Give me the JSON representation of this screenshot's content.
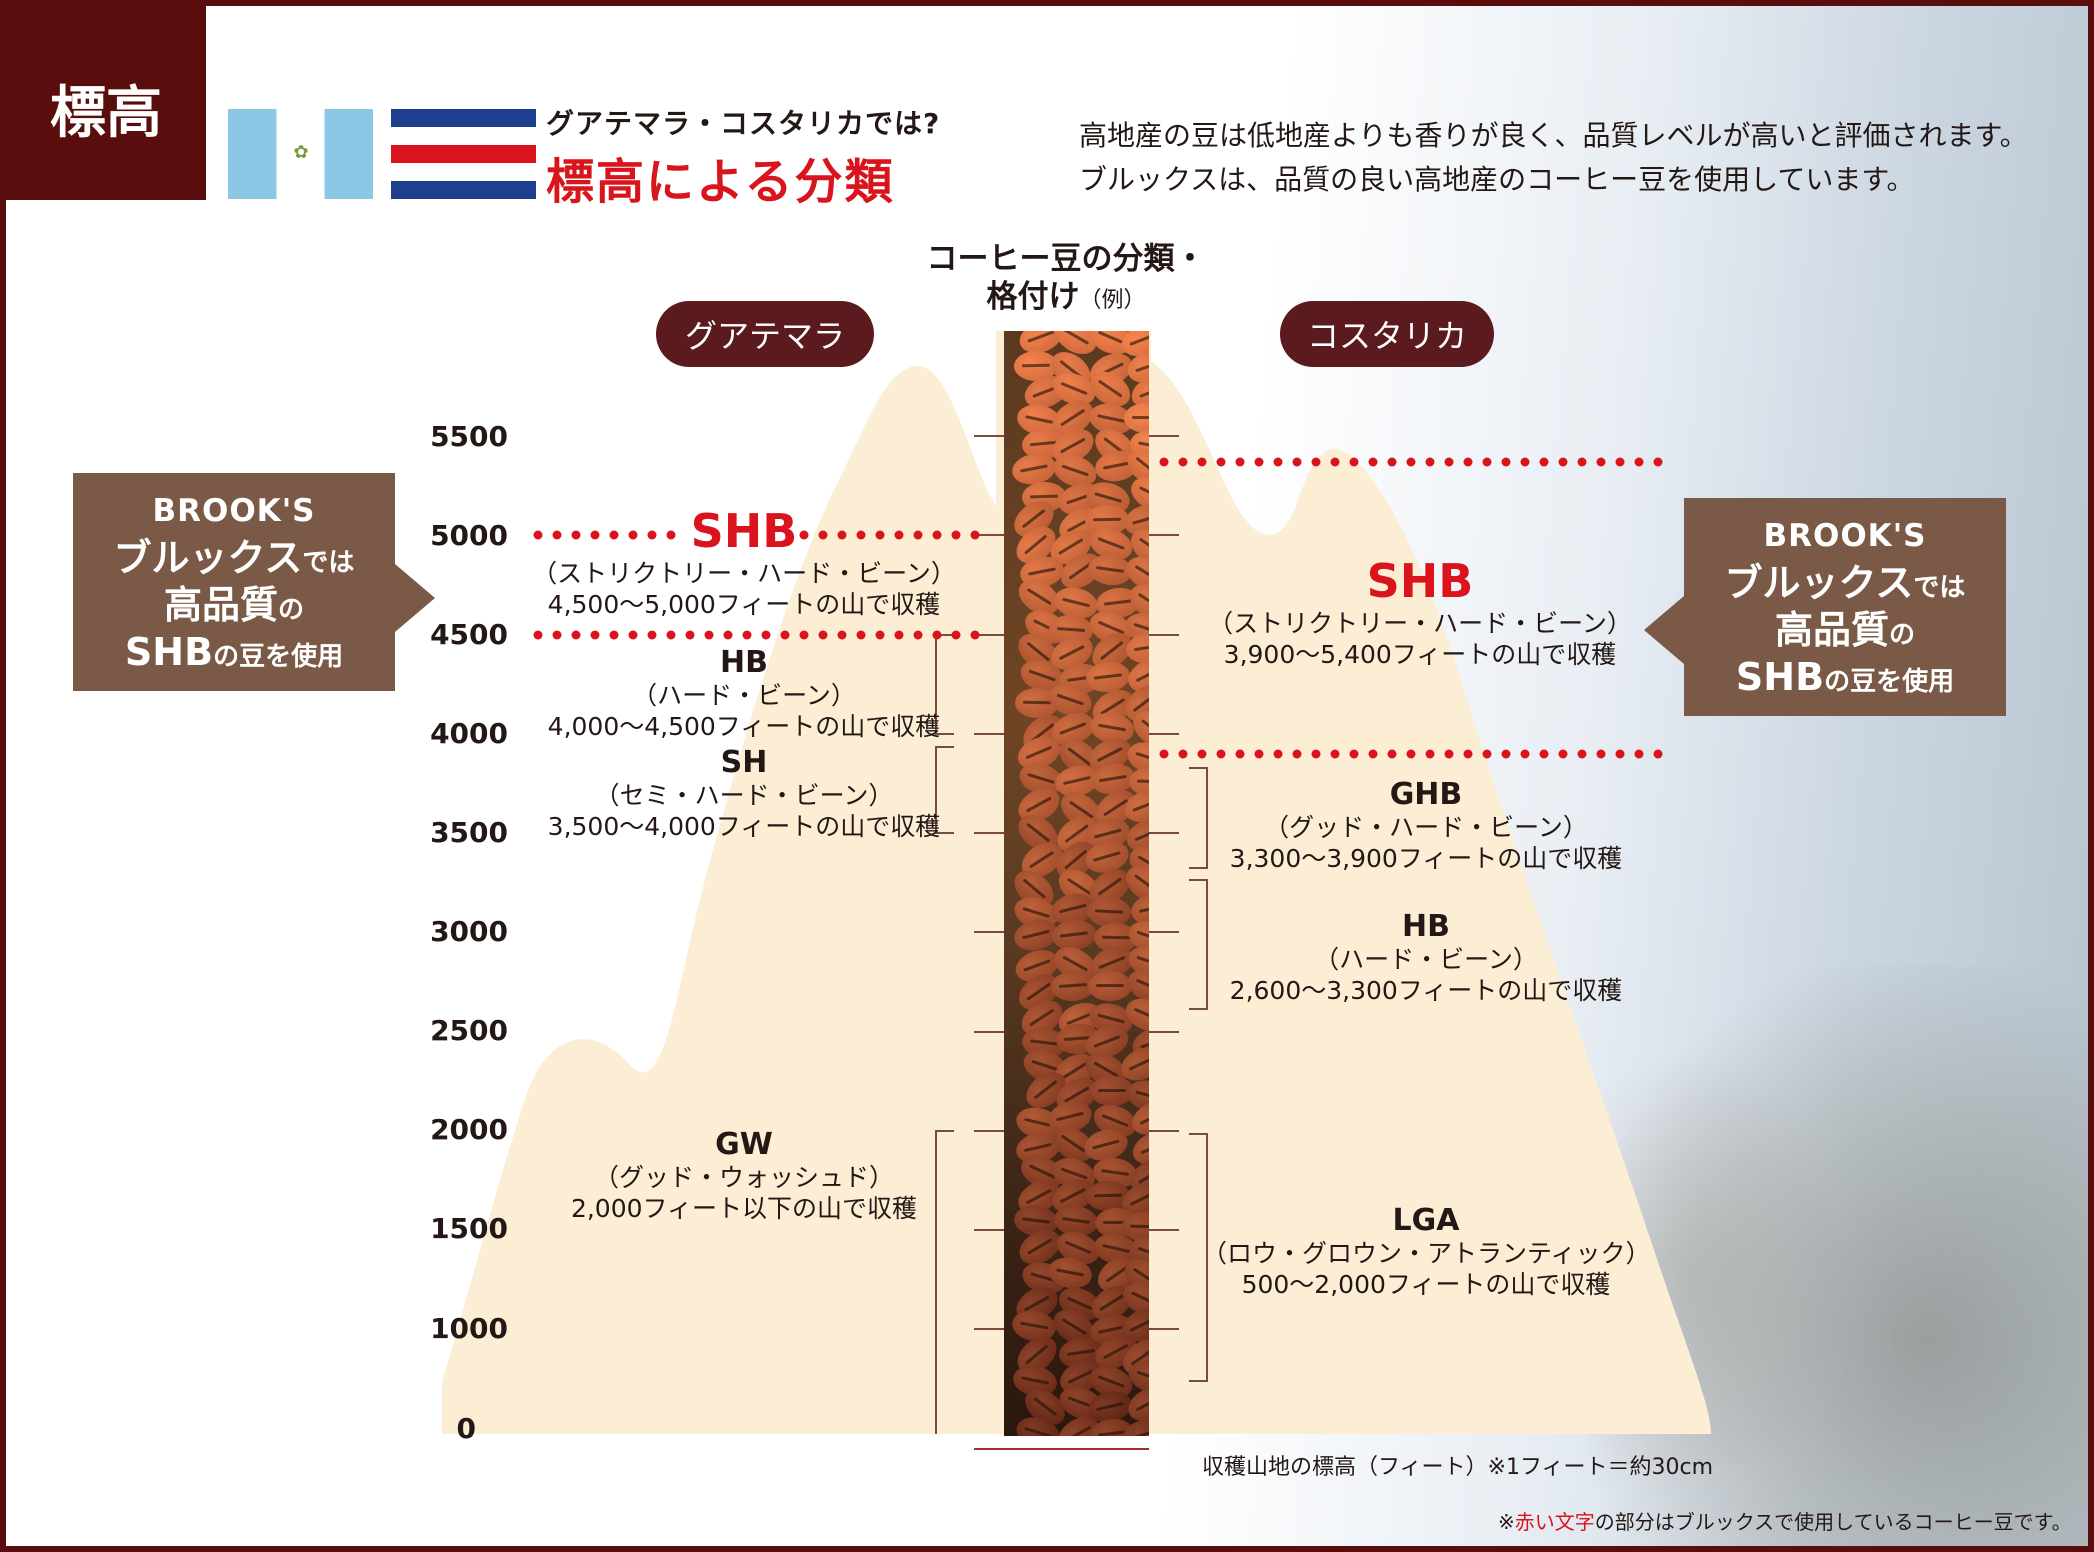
{
  "header": {
    "label": "標高",
    "subtitle": "グアテマラ・コスタリカでは?",
    "title": "標高による分類",
    "description_lines": [
      "高地産の豆は低地産よりも香りが良く、品質レベルが高いと評価されます。",
      "ブルックスは、品質の良い高地産のコーヒー豆を使用しています。"
    ]
  },
  "flags": [
    {
      "country": "Guatemala",
      "colors": [
        "#8cc8e6",
        "#ffffff",
        "#8cc8e6"
      ]
    },
    {
      "country": "Costa Rica",
      "colors": [
        "#1d3f8e",
        "#ffffff",
        "#d9141c",
        "#ffffff",
        "#1d3f8e"
      ]
    }
  ],
  "center_title": {
    "line1": "コーヒー豆の分類・",
    "line2": "格付け",
    "line2_small": "（例）"
  },
  "countries": {
    "left": "グアテマラ",
    "right": "コスタリカ"
  },
  "y_axis": {
    "ticks": [
      "5500",
      "5000",
      "4500",
      "4000",
      "3500",
      "3000",
      "2500",
      "2000",
      "1500",
      "1000",
      "0"
    ],
    "note": "収穫山地の標高（フィート）※1フィート＝約30cm"
  },
  "guatemala": [
    {
      "code": "SHB",
      "name": "（ストリクトリー・ハード・ビーン）",
      "range": "4,500〜5,000フィートの山で収穫",
      "highlight": true
    },
    {
      "code": "HB",
      "name": "（ハード・ビーン）",
      "range": "4,000〜4,500フィートの山で収穫",
      "highlight": false
    },
    {
      "code": "SH",
      "name": "（セミ・ハード・ビーン）",
      "range": "3,500〜4,000フィートの山で収穫",
      "highlight": false
    },
    {
      "code": "GW",
      "name": "（グッド・ウォッシュド）",
      "range": "2,000フィート以下の山で収穫",
      "highlight": false
    }
  ],
  "costarica": [
    {
      "code": "SHB",
      "name": "（ストリクトリー・ハード・ビーン）",
      "range": "3,900〜5,400フィートの山で収穫",
      "highlight": true
    },
    {
      "code": "GHB",
      "name": "（グッド・ハード・ビーン）",
      "range": "3,300〜3,900フィートの山で収穫",
      "highlight": false
    },
    {
      "code": "HB",
      "name": "（ハード・ビーン）",
      "range": "2,600〜3,300フィートの山で収穫",
      "highlight": false
    },
    {
      "code": "LGA",
      "name": "（ロウ・グロウン・アトランティック）",
      "range": "500〜2,000フィートの山で収穫",
      "highlight": false
    }
  ],
  "brooks_badge": {
    "logo": "BROOK'S",
    "line1": "ブルックス",
    "line1_small": "では",
    "line2": "高品質",
    "line2_small": "の",
    "line3": "SHB",
    "line3_small": "の豆を使用"
  },
  "footnote": {
    "prefix": "※",
    "red": "赤い文字",
    "suffix": "の部分はブルックスで使用しているコーヒー豆です。"
  },
  "colors": {
    "accent_red": "#d9141c",
    "maroon": "#5a0d0d",
    "mountain": "#fcedd5",
    "badge_brown": "#7a5a46"
  }
}
